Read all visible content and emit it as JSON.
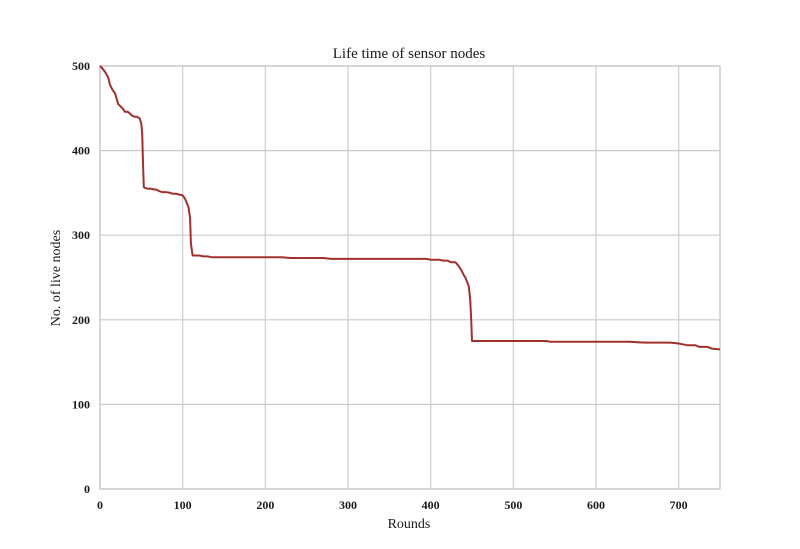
{
  "chart_data": {
    "type": "line",
    "title": "Life time of sensor nodes",
    "xlabel": "Rounds",
    "ylabel": "No. of live nodes",
    "xlim": [
      0,
      750
    ],
    "ylim": [
      0,
      500
    ],
    "xticks": [
      0,
      100,
      200,
      300,
      400,
      500,
      600,
      700
    ],
    "yticks": [
      0,
      100,
      200,
      300,
      400,
      500
    ],
    "grid": true,
    "line_color": "#a0302d",
    "grid_color": "#cccccc",
    "series": [
      {
        "x": [
          0,
          3,
          6,
          8,
          10,
          12,
          15,
          18,
          20,
          22,
          25,
          28,
          30,
          33,
          35,
          38,
          42,
          45,
          48,
          50,
          51,
          52,
          53,
          54,
          58,
          62,
          65,
          68,
          72,
          75,
          80,
          85,
          88,
          92,
          96,
          100,
          103,
          105,
          107,
          109,
          110,
          112,
          115,
          120,
          125,
          130,
          135,
          140,
          150,
          160,
          170,
          180,
          190,
          200,
          210,
          220,
          230,
          240,
          250,
          260,
          270,
          280,
          290,
          300,
          320,
          340,
          360,
          380,
          395,
          400,
          410,
          415,
          420,
          425,
          430,
          435,
          438,
          440,
          442,
          444,
          446,
          447,
          448,
          449,
          450,
          455,
          460,
          480,
          500,
          520,
          540,
          545,
          560,
          580,
          600,
          620,
          640,
          660,
          680,
          690,
          700,
          705,
          710,
          720,
          725,
          730,
          735,
          740,
          750
        ],
        "y": [
          500,
          497,
          493,
          490,
          486,
          478,
          472,
          468,
          462,
          455,
          452,
          449,
          446,
          446,
          445,
          442,
          440,
          440,
          438,
          432,
          420,
          385,
          357,
          356,
          355,
          355,
          354,
          354,
          352,
          351,
          351,
          350,
          349,
          349,
          348,
          347,
          343,
          338,
          333,
          320,
          290,
          276,
          276,
          276,
          275,
          275,
          274,
          274,
          274,
          274,
          274,
          274,
          274,
          274,
          274,
          274,
          273,
          273,
          273,
          273,
          273,
          272,
          272,
          272,
          272,
          272,
          272,
          272,
          272,
          271,
          271,
          270,
          270,
          268,
          268,
          262,
          257,
          253,
          250,
          245,
          240,
          232,
          222,
          200,
          175,
          175,
          175,
          175,
          175,
          175,
          175,
          174,
          174,
          174,
          174,
          174,
          174,
          173,
          173,
          173,
          172,
          171,
          170,
          170,
          168,
          168,
          168,
          166,
          165
        ]
      }
    ]
  }
}
